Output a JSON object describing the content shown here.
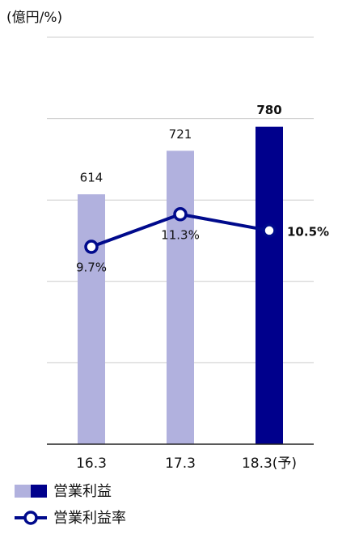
{
  "chart_data": {
    "type": "bar-line",
    "y_label": "(億円/%)",
    "categories": [
      "16.3",
      "17.3",
      "18.3(予)"
    ],
    "series": [
      {
        "name": "営業利益",
        "type": "bar",
        "colors": [
          "#b1b1de",
          "#b1b1de",
          "#00008c"
        ],
        "color": "#b1b1de",
        "values": [
          614,
          721,
          780
        ]
      },
      {
        "name": "営業利益率",
        "type": "line",
        "axis": "y2",
        "color": "#000a8c",
        "values": [
          9.7,
          11.3,
          10.5
        ],
        "value_labels": [
          "9.7%",
          "11.3%",
          "10.5%"
        ]
      }
    ],
    "ylim": [
      0,
      1000
    ],
    "yticks": [
      0,
      200,
      400,
      600,
      800,
      1000
    ],
    "y2lim": [
      0,
      20
    ],
    "grid": true
  }
}
